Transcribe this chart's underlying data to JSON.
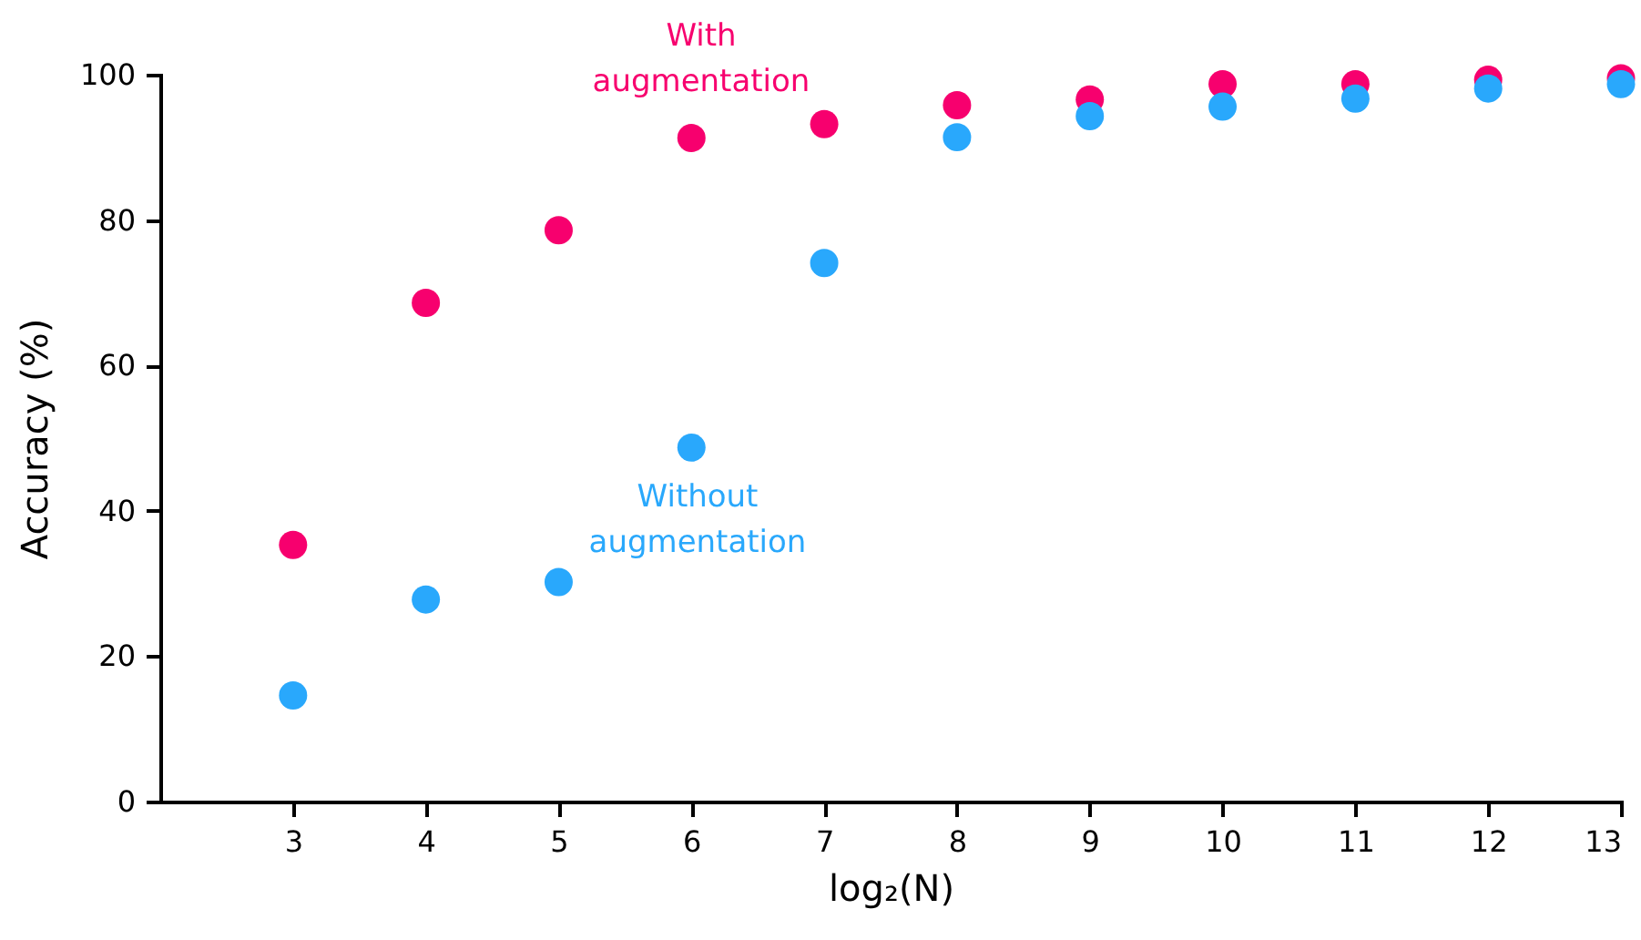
{
  "chart_data": {
    "type": "scatter",
    "xlabel": "log₂(N)",
    "ylabel": "Accuracy (%)",
    "x": [
      3,
      4,
      5,
      6,
      7,
      8,
      9,
      10,
      11,
      12,
      13
    ],
    "series": [
      {
        "name": "With augmentation",
        "color": "#f7006e",
        "values": [
          35.3,
          68.6,
          78.6,
          91.3,
          93.2,
          95.8,
          96.6,
          98.7,
          98.7,
          99.3,
          99.5
        ]
      },
      {
        "name": "Without augmentation",
        "color": "#29a8fc",
        "values": [
          14.6,
          27.8,
          30.2,
          48.7,
          74.1,
          91.4,
          94.3,
          95.6,
          96.7,
          98.1,
          98.7
        ]
      }
    ],
    "xlim": [
      2,
      13
    ],
    "xticks": [
      3,
      4,
      5,
      6,
      7,
      8,
      9,
      10,
      11,
      12,
      13
    ],
    "ylim": [
      0,
      100
    ],
    "yticks": [
      0,
      20,
      40,
      60,
      80,
      100
    ],
    "grid": false,
    "legend": false,
    "marker": "circle"
  }
}
